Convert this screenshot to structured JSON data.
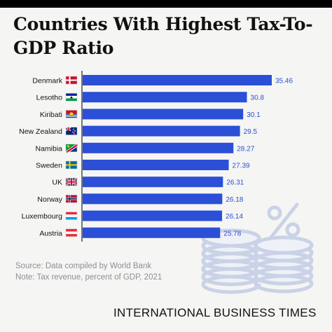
{
  "title": "Countries With Highest Tax-To-GDP Ratio",
  "source": "Source: Data compiled by World Bank",
  "note": "Note: Tax revenue, percent of GDP, 2021",
  "brand": "INTERNATIONAL BUSINESS TIMES",
  "colors": {
    "bar": "#2b4fd6",
    "value_label": "#2b4fd6",
    "axis": "#222222",
    "background": "#f5f5f3"
  },
  "chart_data": {
    "type": "bar",
    "orientation": "horizontal",
    "categories": [
      "Denmark",
      "Lesotho",
      "Kiribati",
      "New Zealand",
      "Namibia",
      "Sweden",
      "UK",
      "Norway",
      "Luxembourg",
      "Austria"
    ],
    "values": [
      35.46,
      30.8,
      30.1,
      29.5,
      28.27,
      27.39,
      26.31,
      26.18,
      26.14,
      25.78
    ],
    "value_labels": [
      "35.46",
      "30.8",
      "30.1",
      "29.5",
      "28.27",
      "27.39",
      "26.31",
      "26.18",
      "26.14",
      "25.78"
    ],
    "flag_icons": [
      "denmark-flag-icon",
      "lesotho-flag-icon",
      "kiribati-flag-icon",
      "new-zealand-flag-icon",
      "namibia-flag-icon",
      "sweden-flag-icon",
      "uk-flag-icon",
      "norway-flag-icon",
      "luxembourg-flag-icon",
      "austria-flag-icon"
    ],
    "xlim": [
      0,
      35.46
    ],
    "grid": false,
    "legend": "none"
  }
}
